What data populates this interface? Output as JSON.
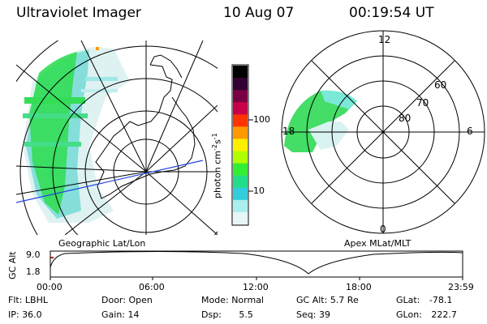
{
  "header": {
    "title": "Ultraviolet Imager",
    "date": "10 Aug 07",
    "time": "00:19:54 UT"
  },
  "left_panel": {
    "caption": "Geographic Lat/Lon"
  },
  "colorbar": {
    "label": "photon cm",
    "label_sup1": "-2",
    "label_mid": "s",
    "label_sup2": "-1",
    "tick_100": "100",
    "tick_10": "10",
    "colors": [
      "#000000",
      "#330033",
      "#7a0044",
      "#c8004a",
      "#ff3300",
      "#ff9900",
      "#ffee00",
      "#b0ff00",
      "#33ee33",
      "#22dd88",
      "#33ccdd",
      "#aaeeee",
      "#e6f5f5"
    ]
  },
  "right_panel": {
    "caption": "Apex MLat/MLT",
    "mlt_labels": {
      "top": "12",
      "bottom": "0",
      "left": "18",
      "right": "6"
    },
    "lat_labels": [
      "80",
      "70",
      "60"
    ]
  },
  "altitude_plot": {
    "ylabel": "GC Alt",
    "ytick_top": "9.0",
    "ytick_bottom": "1.8",
    "xticks": [
      "00:00",
      "06:00",
      "12:00",
      "18:00",
      "23:59"
    ]
  },
  "info": {
    "flt_label": "Flt:",
    "flt_value": "LBHL",
    "ip_label": "IP:",
    "ip_value": "36.0",
    "door_label": "Door:",
    "door_value": "Open",
    "gain_label": "Gain:",
    "gain_value": "14",
    "mode_label": "Mode:",
    "mode_value": "Normal",
    "dsp_label": "Dsp:",
    "dsp_value": "5.5",
    "gcalt_label": "GC Alt:",
    "gcalt_value": "5.7 Re",
    "seq_label": "Seq:",
    "seq_value": "39",
    "glat_label": "GLat:",
    "glat_value": "-78.1",
    "glon_label": "GLon:",
    "glon_value": "222.7"
  }
}
